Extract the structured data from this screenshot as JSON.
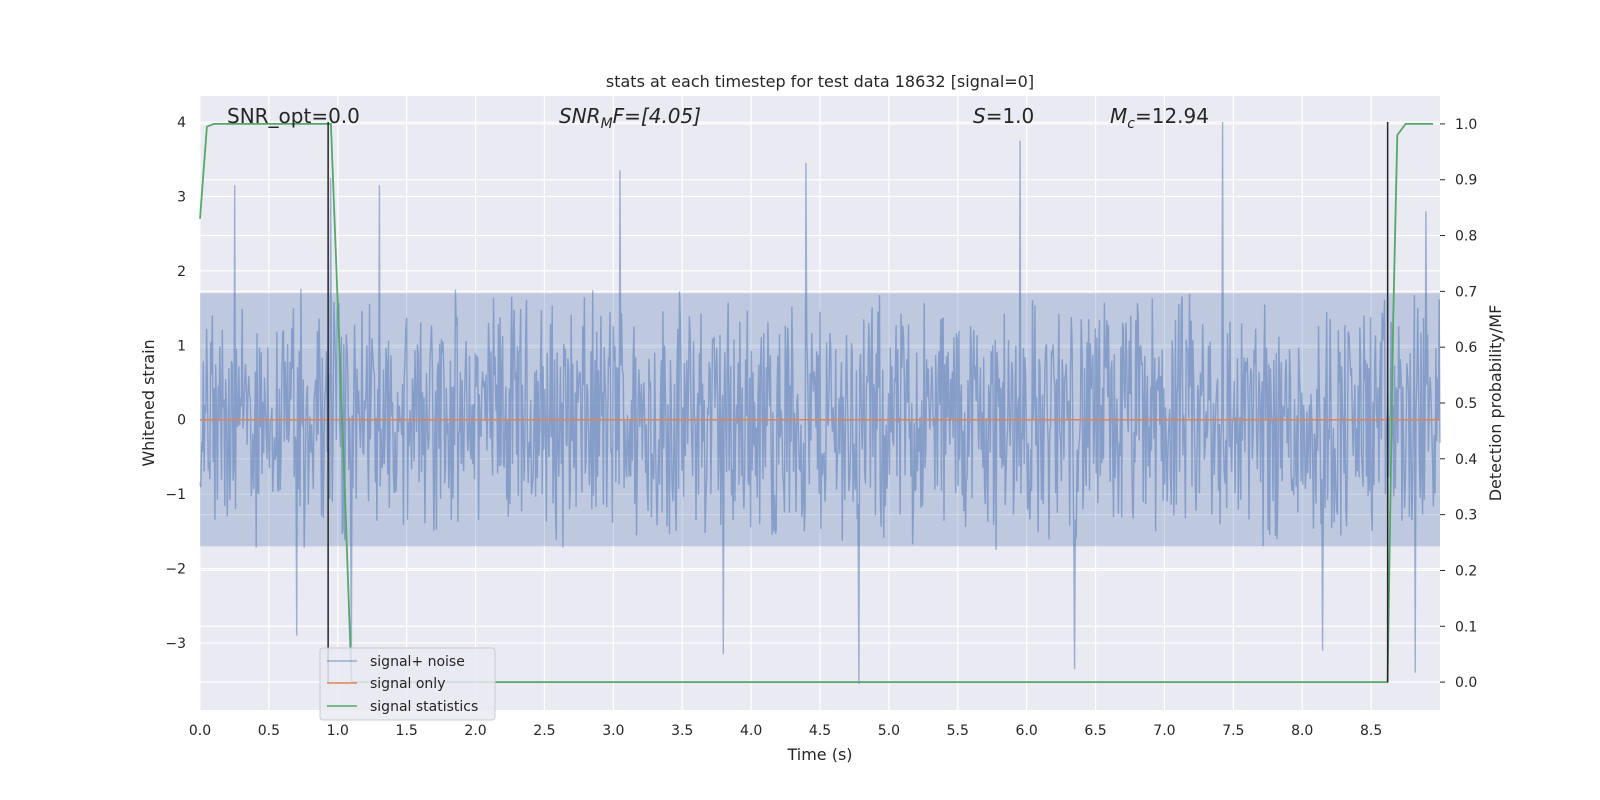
{
  "chart_data": {
    "type": "line",
    "title": "stats at each timestep for test data 18632 [signal=0]",
    "xlabel": "Time (s)",
    "ylabel": "Whitened strain",
    "y2label": "Detection probability/MF",
    "xlim": [
      0.0,
      9.0
    ],
    "ylim": [
      -3.9,
      4.35
    ],
    "y2lim": [
      -0.05,
      1.05
    ],
    "x_ticks": [
      "0.0",
      "0.5",
      "1.0",
      "1.5",
      "2.0",
      "2.5",
      "3.0",
      "3.5",
      "4.0",
      "4.5",
      "5.0",
      "5.5",
      "6.0",
      "6.5",
      "7.0",
      "7.5",
      "8.0",
      "8.5"
    ],
    "y_ticks": [
      "4",
      "3",
      "2",
      "1",
      "0",
      "−1",
      "−2",
      "−3"
    ],
    "y2_ticks": [
      "1.0",
      "0.9",
      "0.8",
      "0.7",
      "0.6",
      "0.5",
      "0.4",
      "0.3",
      "0.2",
      "0.1",
      "0.0"
    ],
    "grid": true,
    "legend_position": "lower-left",
    "legend": [
      "signal+ noise",
      "signal only",
      "signal statistics"
    ],
    "annotations": {
      "snr_opt": "SNR_opt=0.0",
      "snr_mf_name": "SNR",
      "snr_mf_sub": "M",
      "snr_mf_rest": "F=[4.05]",
      "s_name": "S",
      "s_rest": "=1.0",
      "mc_name": "M",
      "mc_sub": "c",
      "mc_rest": "=12.94"
    },
    "series": [
      {
        "name": "signal+ noise",
        "color": "#4c72b0",
        "alpha": 0.5,
        "description_bounds": {
          "typical_min": -1.7,
          "typical_max": 1.7,
          "peak_min": -3.55,
          "peak_max": 4.0
        },
        "peaks": [
          [
            0.25,
            3.15
          ],
          [
            0.95,
            3.25
          ],
          [
            1.3,
            3.15
          ],
          [
            3.05,
            3.35
          ],
          [
            4.4,
            3.45
          ],
          [
            5.95,
            3.75
          ],
          [
            7.42,
            4.0
          ],
          [
            8.9,
            2.8
          ],
          [
            0.7,
            -2.9
          ],
          [
            1.1,
            -3.5
          ],
          [
            3.8,
            -3.15
          ],
          [
            4.78,
            -3.55
          ],
          [
            6.35,
            -3.35
          ],
          [
            8.15,
            -3.1
          ],
          [
            8.82,
            -3.4
          ]
        ]
      },
      {
        "name": "signal only",
        "color": "#dd8452",
        "x": [
          0.0,
          9.0
        ],
        "y": [
          0.0,
          0.0
        ]
      },
      {
        "name": "signal statistics",
        "color": "#55a868",
        "axis": "right",
        "x": [
          0.0,
          0.05,
          0.1,
          0.15,
          0.2,
          0.3,
          0.5,
          0.7,
          0.85,
          0.93,
          0.95,
          1.05,
          1.1,
          1.5,
          2.0,
          3.0,
          4.0,
          5.0,
          6.0,
          7.0,
          8.0,
          8.5,
          8.62,
          8.66,
          8.69,
          8.75,
          8.8,
          8.95
        ],
        "y": [
          0.83,
          0.995,
          1.0,
          1.0,
          1.0,
          1.0,
          1.0,
          1.0,
          1.0,
          1.0,
          1.0,
          0.35,
          0.0,
          0.0,
          0.0,
          0.0,
          0.0,
          0.0,
          0.0,
          0.0,
          0.0,
          0.0,
          0.0,
          0.65,
          0.98,
          1.0,
          1.0,
          1.0
        ]
      }
    ],
    "vlines": [
      {
        "x": 0.93,
        "color": "#262626"
      },
      {
        "x": 8.62,
        "color": "#262626"
      }
    ]
  }
}
